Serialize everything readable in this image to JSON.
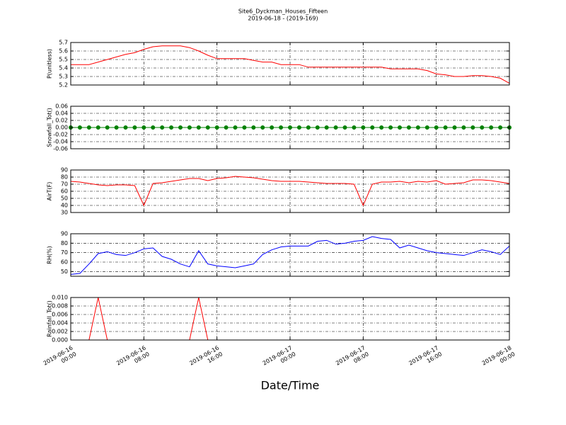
{
  "chart_data": {
    "type": "multi-panel",
    "title": "Site6_Dyckman_Houses_Fifteen",
    "subtitle": "2019-06-18 - (2019-169)",
    "xlabel": "Date/Time",
    "xlim": [
      "2019-06-16 00:00",
      "2019-06-18 00:00"
    ],
    "xticks": [
      "2019-06-16 00:00",
      "2019-06-16 08:00",
      "2019-06-16 16:00",
      "2019-06-17 00:00",
      "2019-06-17 08:00",
      "2019-06-17 16:00",
      "2019-06-18 00:00"
    ],
    "grid": true,
    "x": [
      "2019-06-16 00:00",
      "2019-06-16 01:00",
      "2019-06-16 02:00",
      "2019-06-16 03:00",
      "2019-06-16 04:00",
      "2019-06-16 05:00",
      "2019-06-16 06:00",
      "2019-06-16 07:00",
      "2019-06-16 08:00",
      "2019-06-16 09:00",
      "2019-06-16 10:00",
      "2019-06-16 11:00",
      "2019-06-16 12:00",
      "2019-06-16 13:00",
      "2019-06-16 14:00",
      "2019-06-16 15:00",
      "2019-06-16 16:00",
      "2019-06-16 17:00",
      "2019-06-16 18:00",
      "2019-06-16 19:00",
      "2019-06-16 20:00",
      "2019-06-16 21:00",
      "2019-06-16 22:00",
      "2019-06-16 23:00",
      "2019-06-17 00:00",
      "2019-06-17 01:00",
      "2019-06-17 02:00",
      "2019-06-17 03:00",
      "2019-06-17 04:00",
      "2019-06-17 05:00",
      "2019-06-17 06:00",
      "2019-06-17 07:00",
      "2019-06-17 08:00",
      "2019-06-17 09:00",
      "2019-06-17 10:00",
      "2019-06-17 11:00",
      "2019-06-17 12:00",
      "2019-06-17 13:00",
      "2019-06-17 14:00",
      "2019-06-17 15:00",
      "2019-06-17 16:00",
      "2019-06-17 17:00",
      "2019-06-17 18:00",
      "2019-06-17 19:00",
      "2019-06-17 20:00",
      "2019-06-17 21:00",
      "2019-06-17 22:00",
      "2019-06-17 23:00",
      "2019-06-18 00:00"
    ],
    "panels": [
      {
        "type": "line",
        "ylabel": "P(unitless)",
        "ylim": [
          5.2,
          5.7
        ],
        "yticks": [
          5.2,
          5.3,
          5.4,
          5.5,
          5.6,
          5.7
        ],
        "series": [
          {
            "color": "#ff0000",
            "values": [
              5.44,
              5.44,
              5.44,
              5.47,
              5.5,
              5.53,
              5.56,
              5.58,
              5.62,
              5.65,
              5.66,
              5.66,
              5.66,
              5.64,
              5.6,
              5.55,
              5.51,
              5.51,
              5.51,
              5.51,
              5.49,
              5.47,
              5.47,
              5.44,
              5.44,
              5.44,
              5.41,
              5.41,
              5.41,
              5.41,
              5.41,
              5.41,
              5.41,
              5.41,
              5.41,
              5.39,
              5.39,
              5.39,
              5.39,
              5.37,
              5.33,
              5.32,
              5.3,
              5.3,
              5.31,
              5.31,
              5.3,
              5.28,
              5.22
            ]
          }
        ]
      },
      {
        "type": "line",
        "marker": "o",
        "ylabel": "Snowfall_Tot()",
        "ylim": [
          -0.06,
          0.06
        ],
        "yticks": [
          -0.06,
          -0.04,
          -0.02,
          {
            "value": 0,
            "label": "0.00"
          },
          0.02,
          0.04,
          0.06
        ],
        "series": [
          {
            "color": "#008000",
            "values": [
              0,
              0,
              0,
              0,
              0,
              0,
              0,
              0,
              0,
              0,
              0,
              0,
              0,
              0,
              0,
              0,
              0,
              0,
              0,
              0,
              0,
              0,
              0,
              0,
              0,
              0,
              0,
              0,
              0,
              0,
              0,
              0,
              0,
              0,
              0,
              0,
              0,
              0,
              0,
              0,
              0,
              0,
              0,
              0,
              0,
              0,
              0,
              0,
              0
            ]
          }
        ]
      },
      {
        "type": "line",
        "ylabel": "AirT(F)",
        "ylim": [
          30,
          90
        ],
        "yticks": [
          30,
          40,
          50,
          60,
          70,
          80,
          90
        ],
        "series": [
          {
            "color": "#ff0000",
            "values": [
              74,
              73,
              71,
              69,
              68,
              69,
              69,
              68,
              40,
              71,
              72,
              74,
              76,
              78,
              78,
              75,
              78,
              79,
              81,
              80,
              79,
              77,
              75,
              74,
              74,
              74,
              73,
              72,
              71,
              71,
              71,
              70,
              40,
              70,
              73,
              73,
              74,
              72,
              74,
              73,
              75,
              70,
              71,
              72,
              76,
              76,
              75,
              73,
              71
            ]
          }
        ]
      },
      {
        "type": "line",
        "ylabel": "RH(%)",
        "ylim": [
          45,
          90
        ],
        "yticks": [
          50,
          60,
          70,
          80,
          90
        ],
        "series": [
          {
            "color": "#0000ff",
            "values": [
              47,
              48,
              58,
              69,
              71,
              68,
              67,
              70,
              74,
              75,
              66,
              63,
              58,
              55,
              72,
              58,
              56,
              55,
              54,
              56,
              58,
              68,
              73,
              76,
              77,
              77,
              77,
              82,
              83,
              79,
              80,
              82,
              83,
              87,
              85,
              84,
              75,
              78,
              75,
              72,
              70,
              69,
              68,
              67,
              70,
              73,
              71,
              68,
              77
            ]
          }
        ]
      },
      {
        "type": "line",
        "ylabel": "Rainfall_Tot()",
        "ylim": [
          0,
          0.01
        ],
        "yticks": [
          {
            "value": 0,
            "label": "0.000"
          },
          0.002,
          0.004,
          0.006,
          0.008,
          {
            "value": 0.01,
            "label": "0.010"
          }
        ],
        "series": [
          {
            "color": "#ff0000",
            "values": [
              0,
              0,
              0,
              0.01,
              0,
              0,
              0,
              0,
              0,
              0,
              0,
              0,
              0,
              0,
              0.01,
              0,
              0,
              0,
              0,
              0,
              0,
              0,
              0,
              0,
              0,
              0,
              0,
              0,
              0,
              0,
              0,
              0,
              0,
              0,
              0,
              0,
              0,
              0,
              0,
              0,
              0,
              0,
              0,
              0,
              0,
              0,
              0,
              0,
              0
            ]
          }
        ]
      }
    ]
  }
}
